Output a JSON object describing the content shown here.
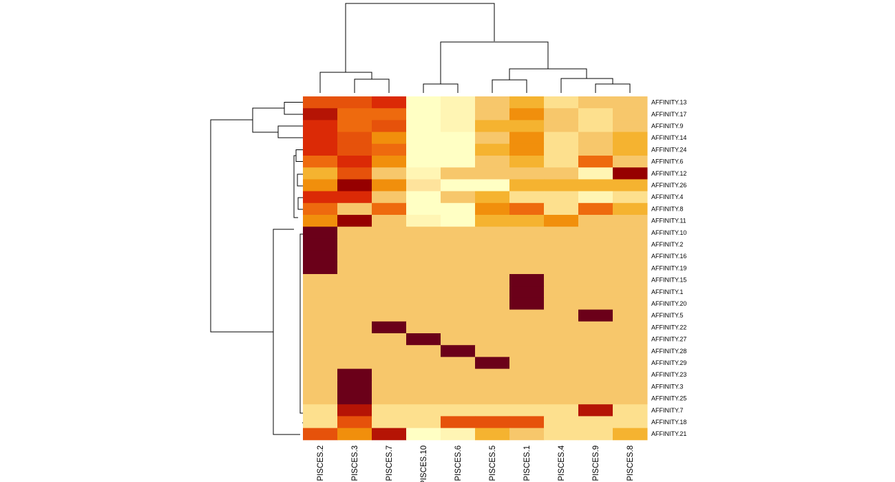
{
  "chart_data": {
    "type": "heatmap",
    "title": "",
    "xlabel": "",
    "ylabel": "",
    "columns": [
      "PISCES.2",
      "PISCES.3",
      "PISCES.7",
      "PISCES.10",
      "PISCES.6",
      "PISCES.5",
      "PISCES.1",
      "PISCES.4",
      "PISCES.9",
      "PISCES.8"
    ],
    "rows": [
      "AFFINITY.13",
      "AFFINITY.17",
      "AFFINITY.9",
      "AFFINITY.14",
      "AFFINITY.24",
      "AFFINITY.6",
      "AFFINITY.12",
      "AFFINITY.26",
      "AFFINITY.4",
      "AFFINITY.8",
      "AFFINITY.11",
      "AFFINITY.10",
      "AFFINITY.2",
      "AFFINITY.16",
      "AFFINITY.19",
      "AFFINITY.15",
      "AFFINITY.1",
      "AFFINITY.20",
      "AFFINITY.5",
      "AFFINITY.22",
      "AFFINITY.27",
      "AFFINITY.28",
      "AFFINITY.29",
      "AFFINITY.23",
      "AFFINITY.3",
      "AFFINITY.25",
      "AFFINITY.7",
      "AFFINITY.18",
      "AFFINITY.21"
    ],
    "color_levels": [
      "#ffffc4",
      "#fff5b4",
      "#fee39c",
      "#fde08e",
      "#f7c76b",
      "#f5b330",
      "#f18f0c",
      "#ee6a0e",
      "#e6520b",
      "#db2a06",
      "#b51405",
      "#960000",
      "#6b0019"
    ],
    "values": [
      [
        8,
        8,
        9,
        0,
        1,
        4,
        5,
        3,
        4,
        4
      ],
      [
        10,
        7,
        7,
        0,
        1,
        4,
        6,
        4,
        3,
        4
      ],
      [
        9,
        7,
        8,
        0,
        1,
        5,
        5,
        4,
        3,
        4
      ],
      [
        9,
        8,
        6,
        0,
        0,
        4,
        6,
        3,
        4,
        5
      ],
      [
        9,
        8,
        7,
        0,
        0,
        5,
        6,
        3,
        4,
        5
      ],
      [
        7,
        9,
        6,
        0,
        0,
        4,
        5,
        3,
        7,
        4
      ],
      [
        5,
        8,
        4,
        1,
        4,
        4,
        4,
        4,
        1,
        11
      ],
      [
        6,
        11,
        6,
        2,
        0,
        0,
        5,
        5,
        5,
        5
      ],
      [
        9,
        9,
        4,
        0,
        4,
        5,
        3,
        3,
        1,
        3
      ],
      [
        7,
        4,
        7,
        0,
        0,
        6,
        7,
        3,
        7,
        5
      ],
      [
        6,
        11,
        4,
        1,
        0,
        5,
        5,
        6,
        4,
        4
      ],
      [
        12,
        4,
        4,
        4,
        4,
        4,
        4,
        4,
        4,
        4
      ],
      [
        12,
        4,
        4,
        4,
        4,
        4,
        4,
        4,
        4,
        4
      ],
      [
        12,
        4,
        4,
        4,
        4,
        4,
        4,
        4,
        4,
        4
      ],
      [
        12,
        4,
        4,
        4,
        4,
        4,
        4,
        4,
        4,
        4
      ],
      [
        4,
        4,
        4,
        4,
        4,
        4,
        12,
        4,
        4,
        4
      ],
      [
        4,
        4,
        4,
        4,
        4,
        4,
        12,
        4,
        4,
        4
      ],
      [
        4,
        4,
        4,
        4,
        4,
        4,
        12,
        4,
        4,
        4
      ],
      [
        4,
        4,
        4,
        4,
        4,
        4,
        4,
        4,
        12,
        4
      ],
      [
        4,
        4,
        12,
        4,
        4,
        4,
        4,
        4,
        4,
        4
      ],
      [
        4,
        4,
        4,
        12,
        4,
        4,
        4,
        4,
        4,
        4
      ],
      [
        4,
        4,
        4,
        4,
        12,
        4,
        4,
        4,
        4,
        4
      ],
      [
        4,
        4,
        4,
        4,
        4,
        12,
        4,
        4,
        4,
        4
      ],
      [
        4,
        12,
        4,
        4,
        4,
        4,
        4,
        4,
        4,
        4
      ],
      [
        4,
        12,
        4,
        4,
        4,
        4,
        4,
        4,
        4,
        4
      ],
      [
        4,
        12,
        4,
        4,
        4,
        4,
        4,
        4,
        4,
        4
      ],
      [
        3,
        10,
        3,
        3,
        3,
        3,
        3,
        3,
        10,
        3
      ],
      [
        3,
        8,
        3,
        3,
        8,
        8,
        8,
        3,
        3,
        3
      ],
      [
        8,
        6,
        10,
        0,
        1,
        5,
        4,
        3,
        3,
        5
      ]
    ]
  }
}
